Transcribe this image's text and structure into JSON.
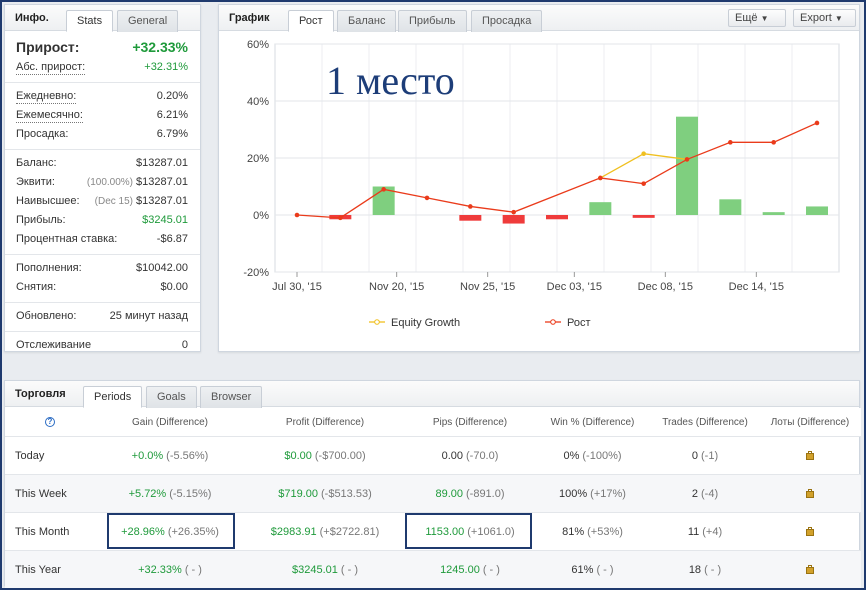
{
  "info": {
    "title": "Инфо.",
    "tabs": [
      "Stats",
      "General"
    ],
    "growth": {
      "label": "Прирост:",
      "value": "+32.33%"
    },
    "abs_growth": {
      "label": "Абс. прирост:",
      "value": "+32.31%"
    },
    "daily": {
      "label": "Ежедневно:",
      "value": "0.20%"
    },
    "monthly": {
      "label": "Ежемесячно:",
      "value": "6.21%"
    },
    "drawdown": {
      "label": "Просадка:",
      "value": "6.79%"
    },
    "balance": {
      "label": "Баланс:",
      "value": "$13287.01"
    },
    "equity": {
      "label": "Эквити:",
      "note": "(100.00%)",
      "value": "$13287.01"
    },
    "highest": {
      "label": "Наивысшее:",
      "note": "(Dec 15)",
      "value": "$13287.01"
    },
    "profit": {
      "label": "Прибыль:",
      "value": "$3245.01"
    },
    "interest": {
      "label": "Процентная ставка:",
      "value": "-$6.87"
    },
    "deposits": {
      "label": "Пополнения:",
      "value": "$10042.00"
    },
    "withdrawals": {
      "label": "Снятия:",
      "value": "$0.00"
    },
    "updated": {
      "label": "Обновлено:",
      "value": "25 минут назад"
    },
    "tracking": {
      "label": "Отслеживание",
      "value": "0"
    }
  },
  "chart_panel": {
    "title": "График",
    "tabs": [
      "Рост",
      "Баланс",
      "Прибыль",
      "Просадка"
    ],
    "more_button": "Ещё",
    "export_button": "Export",
    "overlay_text": "1 место"
  },
  "chart_data": {
    "type": "bar",
    "title": "",
    "xlabel": "",
    "ylabel": "",
    "ylim": [
      -20,
      60
    ],
    "y_ticks": [
      "60%",
      "40%",
      "20%",
      "0%",
      "-20%"
    ],
    "x_tick_labels": [
      "Jul 30, '15",
      "Nov 20, '15",
      "Nov 25, '15",
      "Dec 03, '15",
      "Dec 08, '15",
      "Dec 14, '15"
    ],
    "point_index": [
      0,
      1,
      2,
      3,
      4,
      5,
      6,
      7,
      8,
      9,
      10,
      11
    ],
    "bars": [
      0,
      -1.5,
      10,
      0,
      -2,
      -3,
      -1.5,
      4.5,
      -1,
      34.5,
      5.5,
      1,
      3
    ],
    "bar_colors": {
      "positive": "#7fcf7f",
      "negative": "#ef3b3b"
    },
    "grid": true,
    "legend_position": "bottom",
    "series": [
      {
        "name": "Equity Growth",
        "color": "#f0c020",
        "values": [
          null,
          null,
          null,
          null,
          null,
          null,
          null,
          13,
          21.5,
          19.5,
          null,
          null,
          null
        ]
      },
      {
        "name": "Рост",
        "color": "#ea3b1b",
        "values": [
          0,
          -1,
          9,
          6,
          3,
          1,
          13,
          11,
          19.5,
          25.5,
          25.5,
          32.3
        ]
      }
    ]
  },
  "trading": {
    "title": "Торговля",
    "tabs": [
      "Periods",
      "Goals",
      "Browser"
    ],
    "help_icon": "?",
    "columns": [
      "Gain (Difference)",
      "Profit (Difference)",
      "Pips (Difference)",
      "Win % (Difference)",
      "Trades (Difference)",
      "Лоты (Difference)"
    ],
    "rows": [
      {
        "period": "Today",
        "gain": "+0.0%",
        "gain_diff": "(-5.56%)",
        "profit": "$0.00",
        "profit_diff": "(-$700.00)",
        "pips": "0.00",
        "pips_diff": "(-70.0)",
        "win": "0%",
        "win_diff": "(-100%)",
        "trades": "0",
        "trades_diff": "(-1)"
      },
      {
        "period": "This Week",
        "gain": "+5.72%",
        "gain_diff": "(-5.15%)",
        "profit": "$719.00",
        "profit_diff": "(-$513.53)",
        "pips": "89.00",
        "pips_diff": "(-891.0)",
        "win": "100%",
        "win_diff": "(+17%)",
        "trades": "2",
        "trades_diff": "(-4)"
      },
      {
        "period": "This Month",
        "gain": "+28.96%",
        "gain_diff": "(+26.35%)",
        "profit": "$2983.91",
        "profit_diff": "(+$2722.81)",
        "pips": "1153.00",
        "pips_diff": "(+1061.0)",
        "win": "81%",
        "win_diff": "(+53%)",
        "trades": "11",
        "trades_diff": "(+4)"
      },
      {
        "period": "This Year",
        "gain": "+32.33%",
        "gain_diff": "( - )",
        "profit": "$3245.01",
        "profit_diff": "( - )",
        "pips": "1245.00",
        "pips_diff": "( - )",
        "win": "61%",
        "win_diff": "( - )",
        "trades": "18",
        "trades_diff": "( - )"
      }
    ]
  }
}
